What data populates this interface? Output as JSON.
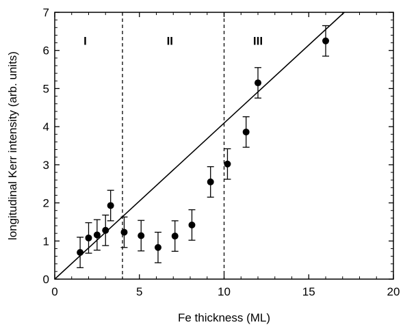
{
  "chart_data": {
    "type": "scatter",
    "title": "",
    "xlabel": "Fe thickness  (ML)",
    "ylabel": "longitudinal Kerr intensity  (arb. units)",
    "xlim": [
      0,
      20
    ],
    "ylim": [
      0,
      7
    ],
    "xticks": [
      0,
      5,
      10,
      15,
      20
    ],
    "yticks": [
      0,
      1,
      2,
      3,
      4,
      5,
      6,
      7
    ],
    "xtick_labels": [
      "0",
      "5",
      "10",
      "15",
      "20"
    ],
    "ytick_labels": [
      "0",
      "1",
      "2",
      "3",
      "4",
      "5",
      "6",
      "7"
    ],
    "grid": false,
    "legend": "none",
    "series": [
      {
        "marker": "filled-circle",
        "color": "#000000",
        "x": [
          1.5,
          2.0,
          2.5,
          3.0,
          3.3,
          4.1,
          5.1,
          6.1,
          7.1,
          8.1,
          9.2,
          10.2,
          11.3,
          12.0,
          16.0
        ],
        "y": [
          0.7,
          1.08,
          1.16,
          1.28,
          1.93,
          1.23,
          1.14,
          0.83,
          1.13,
          1.42,
          2.55,
          3.02,
          3.86,
          5.15,
          6.25
        ],
        "err": [
          0.4,
          0.4,
          0.4,
          0.4,
          0.4,
          0.4,
          0.4,
          0.4,
          0.4,
          0.4,
          0.4,
          0.4,
          0.4,
          0.4,
          0.4
        ]
      }
    ],
    "fit_line": {
      "x": [
        0,
        17.1
      ],
      "y": [
        0,
        7
      ]
    },
    "dividers": [
      4,
      10
    ],
    "regions": [
      {
        "label": "I",
        "x": 1.8
      },
      {
        "label": "II",
        "x": 6.8
      },
      {
        "label": "III",
        "x": 12.0
      }
    ],
    "region_label_y": 6.15
  }
}
